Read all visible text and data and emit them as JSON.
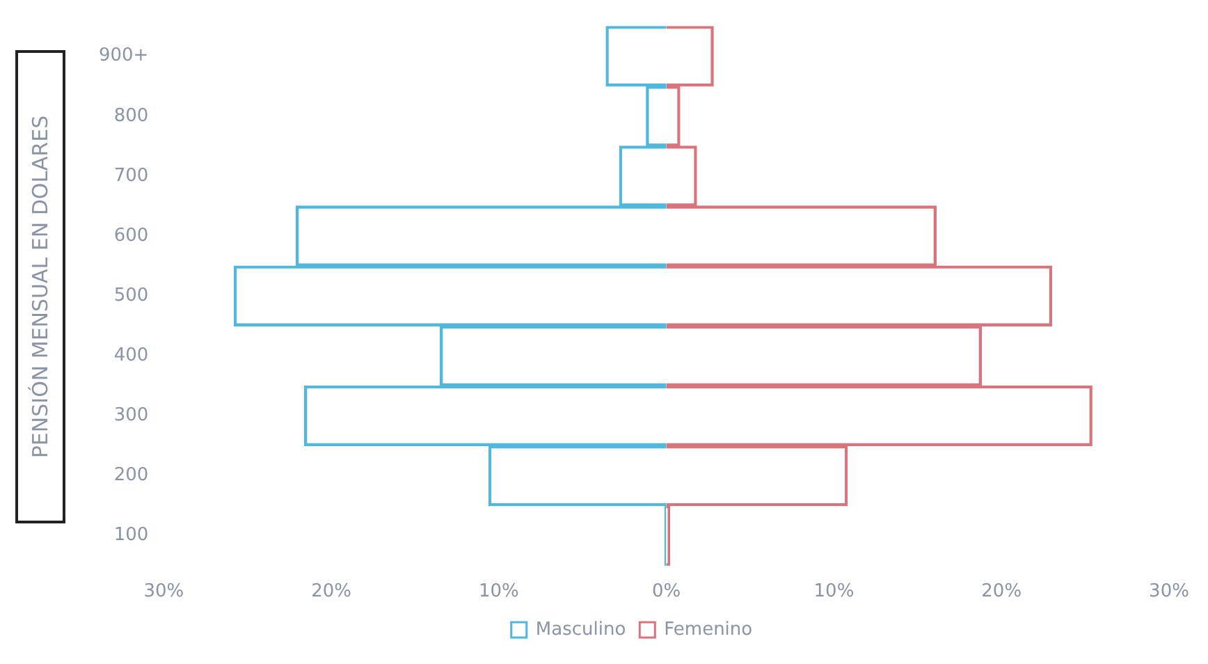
{
  "chart_data": {
    "type": "bar",
    "orientation": "horizontal",
    "stacked": true,
    "ylabel": "PENSIÓN MENSUAL EN DOLARES",
    "categories": [
      "900+",
      "800",
      "700",
      "600",
      "500",
      "400",
      "300",
      "200",
      "100"
    ],
    "series": [
      {
        "name": "Masculino",
        "color": "#4fb8dc",
        "values": [
          -3.6,
          -1.2,
          -2.8,
          -22.1,
          -25.8,
          -13.5,
          -21.6,
          -10.6,
          -0.1
        ]
      },
      {
        "name": "Femenino",
        "color": "#d9747c",
        "values": [
          2.8,
          0.8,
          1.8,
          16.1,
          23.0,
          18.8,
          25.4,
          10.8,
          0.2
        ]
      }
    ],
    "xlim": [
      -30,
      30
    ],
    "xticks": [
      {
        "value": -30,
        "label": "30%"
      },
      {
        "value": -20,
        "label": "20%"
      },
      {
        "value": -10,
        "label": "10%"
      },
      {
        "value": 0,
        "label": "0%"
      },
      {
        "value": 10,
        "label": "10%"
      },
      {
        "value": 20,
        "label": "20%"
      },
      {
        "value": 30,
        "label": "30%"
      }
    ],
    "legend": "bottom"
  }
}
